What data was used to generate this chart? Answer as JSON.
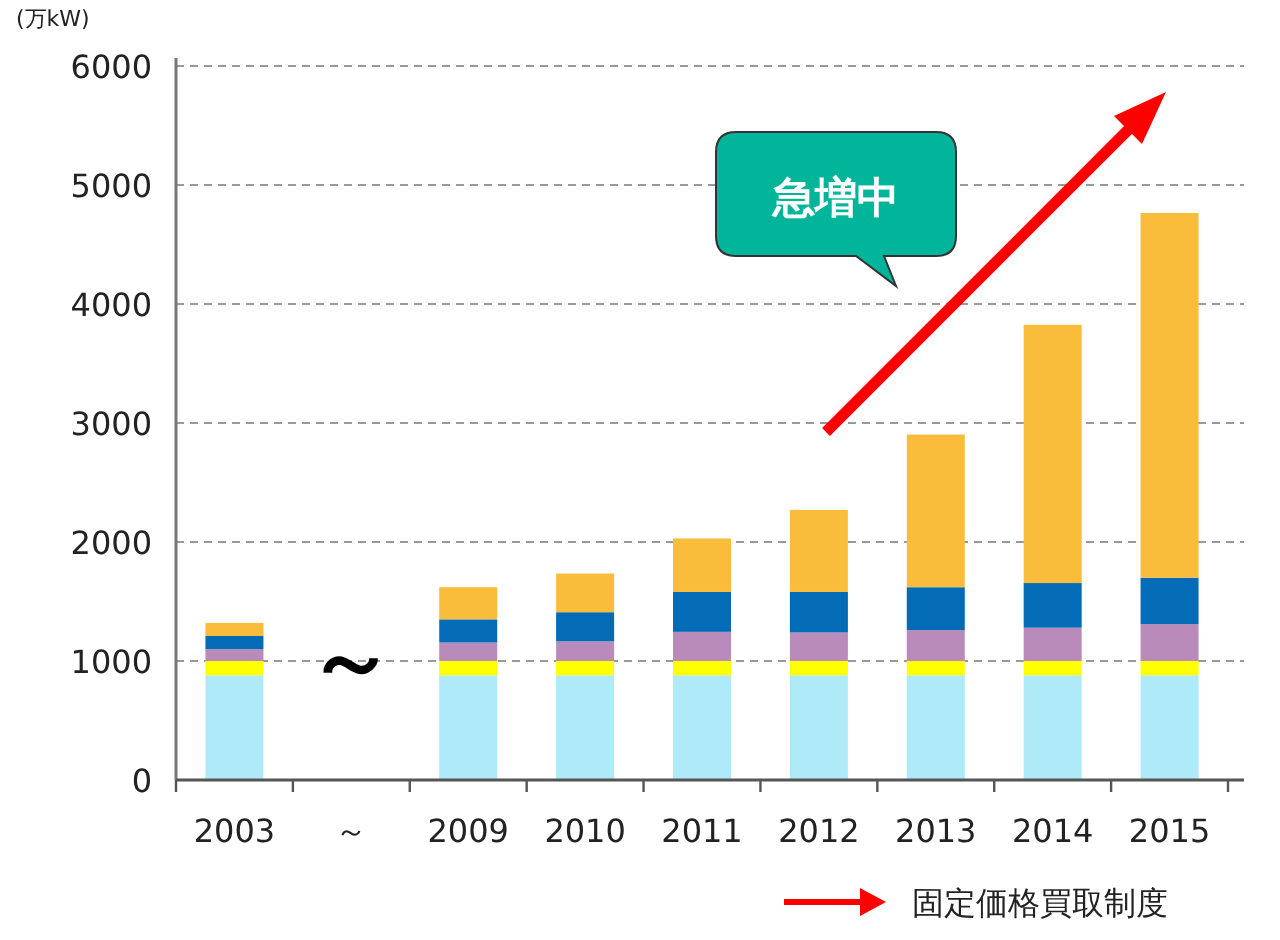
{
  "chart_data": {
    "type": "bar",
    "stacked": true,
    "ylabel": "(万kW)",
    "categories": [
      "2003",
      "～",
      "2009",
      "2010",
      "2011",
      "2012",
      "2013",
      "2014",
      "2015"
    ],
    "series": [
      {
        "color": "#aeeaf8",
        "values": [
          880,
          null,
          880,
          880,
          880,
          880,
          880,
          880,
          880
        ]
      },
      {
        "color": "#ffff00",
        "values": [
          120,
          null,
          120,
          120,
          120,
          120,
          120,
          120,
          120
        ]
      },
      {
        "color": "#b98bbb",
        "values": [
          100,
          null,
          155,
          165,
          245,
          240,
          260,
          280,
          310
        ]
      },
      {
        "color": "#046bb6",
        "values": [
          110,
          null,
          195,
          245,
          335,
          340,
          360,
          375,
          390
        ]
      },
      {
        "color": "#f9bd3b",
        "values": [
          110,
          null,
          270,
          325,
          450,
          690,
          1283,
          2170,
          3065
        ]
      }
    ],
    "ylim": [
      0,
      6000
    ],
    "yticks": [
      0,
      1000,
      2000,
      3000,
      4000,
      5000,
      6000
    ],
    "grid": "y",
    "annotations": [
      "～",
      "急増中",
      "固定価格買取制度"
    ]
  }
}
